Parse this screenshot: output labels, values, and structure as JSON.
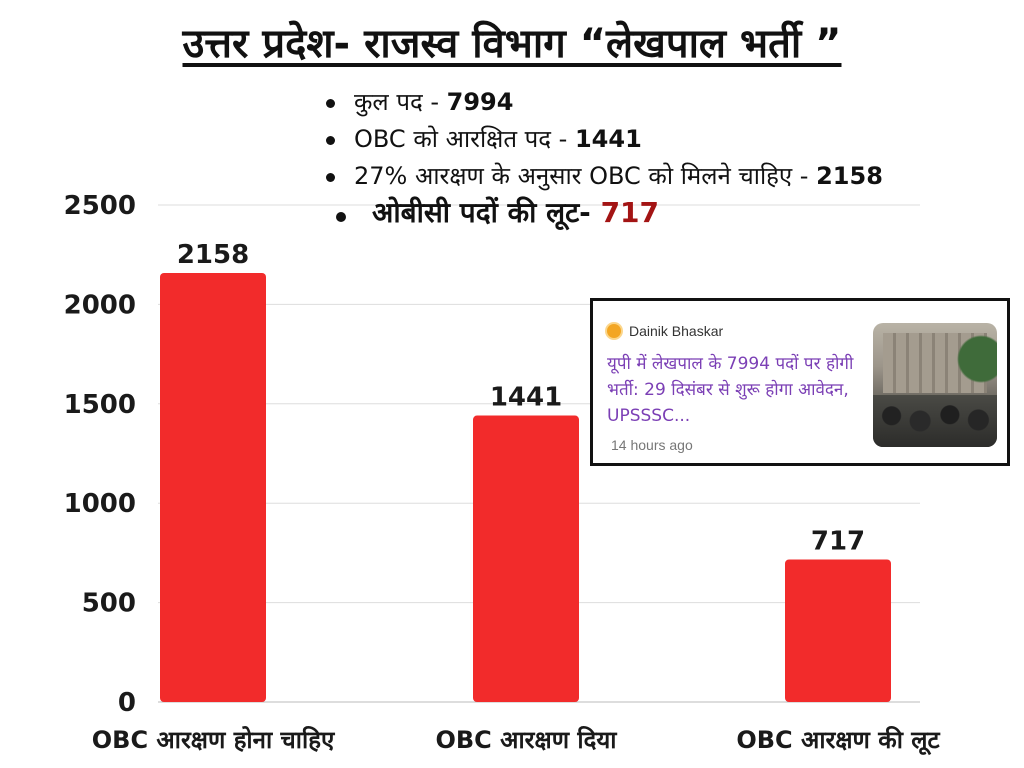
{
  "title": "उत्तर प्रदेश- राजस्व विभाग  “लेखपाल भर्ती ”",
  "bullets": [
    {
      "label": "कुल पद  - ",
      "value": "7994"
    },
    {
      "label": "OBC को आरक्षित पद - ",
      "value": "1441"
    },
    {
      "label": "27% आरक्षण के अनुसार OBC को मिलने चाहिए  - ",
      "value": "2158"
    },
    {
      "label": "ओबीसी पदों की लूट- ",
      "value": "717"
    }
  ],
  "colors": {
    "bar": "#f22b2b",
    "highlight_red": "#a31414",
    "news_headline": "#7b3fb5",
    "gridline": "#dddddd"
  },
  "news_card": {
    "source": "Dainik Bhaskar",
    "source_icon": "sun-icon",
    "headline": "यूपी में लेखपाल के 7994 पदों पर होगी भर्ती: 29 दिसंबर से शुरू होगा आवेदन, UPSSSC...",
    "time": "14 hours ago",
    "thumbnail": "crowd-photo"
  },
  "chart_data": {
    "type": "bar",
    "categories": [
      "OBC आरक्षण होना चाहिए",
      "OBC आरक्षण दिया",
      "OBC आरक्षण की लूट"
    ],
    "values": [
      2158,
      1441,
      717
    ],
    "data_labels": [
      "2158",
      "1441",
      "717"
    ],
    "yticks": [
      "0",
      "500",
      "1000",
      "1500",
      "2000",
      "2500"
    ],
    "ylim": [
      0,
      2500
    ],
    "grid": true,
    "legend": "none",
    "xlabel": "",
    "ylabel": ""
  }
}
